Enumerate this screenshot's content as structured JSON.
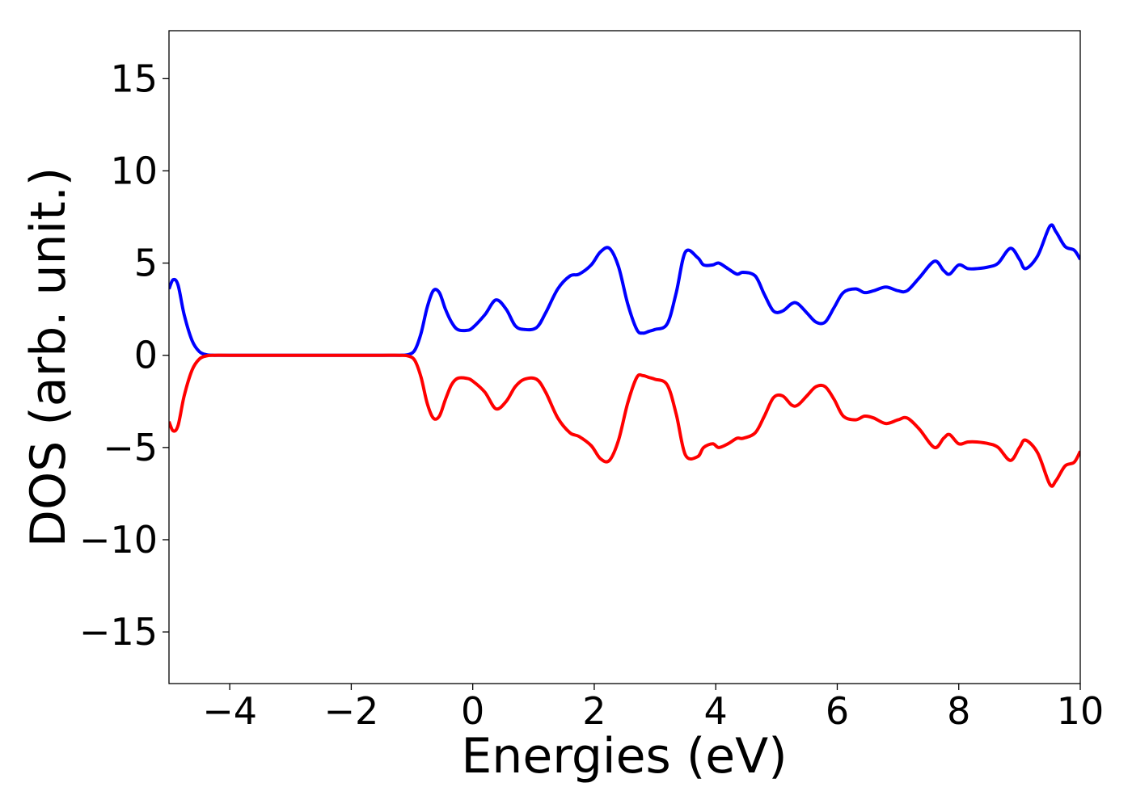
{
  "chart_data": {
    "type": "line",
    "title": "",
    "xlabel": "Energies (eV)",
    "ylabel": "DOS (arb. unit.)",
    "xlim": [
      -5,
      10
    ],
    "ylim": [
      -17.8,
      17.6
    ],
    "xticks": [
      -4,
      -2,
      0,
      2,
      4,
      6,
      8,
      10
    ],
    "yticks": [
      -15,
      -10,
      -5,
      0,
      5,
      10,
      15
    ],
    "xtick_labels": [
      "−4",
      "−2",
      "0",
      "2",
      "4",
      "6",
      "8",
      "10"
    ],
    "ytick_labels": [
      "−15",
      "−10",
      "−5",
      "0",
      "5",
      "10",
      "15"
    ],
    "grid": false,
    "legend": "none",
    "series": [
      {
        "color": "#0000ff",
        "x": [
          -5.0,
          -4.93,
          -4.85,
          -4.75,
          -4.62,
          -4.5,
          -4.38,
          -4.25,
          -4.0,
          -3.0,
          -2.0,
          -1.5,
          -1.2,
          -1.05,
          -0.95,
          -0.85,
          -0.75,
          -0.65,
          -0.55,
          -0.45,
          -0.35,
          -0.25,
          -0.1,
          0.0,
          0.2,
          0.38,
          0.55,
          0.7,
          0.85,
          1.05,
          1.2,
          1.4,
          1.6,
          1.75,
          1.95,
          2.1,
          2.25,
          2.4,
          2.55,
          2.7,
          2.8,
          2.9,
          3.0,
          3.2,
          3.35,
          3.5,
          3.7,
          3.8,
          3.95,
          4.05,
          4.2,
          4.35,
          4.45,
          4.65,
          4.8,
          4.95,
          5.1,
          5.25,
          5.35,
          5.5,
          5.65,
          5.8,
          5.95,
          6.1,
          6.3,
          6.45,
          6.6,
          6.8,
          7.0,
          7.15,
          7.35,
          7.6,
          7.75,
          7.85,
          8.0,
          8.15,
          8.3,
          8.5,
          8.65,
          8.85,
          9.0,
          9.1,
          9.3,
          9.5,
          9.6,
          9.75,
          9.9,
          10.0
        ],
        "values": [
          3.6,
          4.1,
          3.8,
          2.2,
          0.8,
          0.2,
          0.03,
          0.0,
          0.0,
          0.0,
          0.0,
          0.0,
          0.0,
          0.05,
          0.3,
          1.2,
          2.6,
          3.5,
          3.4,
          2.5,
          1.8,
          1.4,
          1.35,
          1.5,
          2.2,
          3.0,
          2.5,
          1.6,
          1.4,
          1.5,
          2.3,
          3.6,
          4.3,
          4.4,
          4.9,
          5.6,
          5.8,
          4.8,
          2.8,
          1.4,
          1.2,
          1.3,
          1.4,
          1.7,
          3.4,
          5.6,
          5.3,
          4.9,
          4.9,
          5.0,
          4.7,
          4.4,
          4.5,
          4.3,
          3.3,
          2.4,
          2.4,
          2.8,
          2.8,
          2.3,
          1.8,
          1.8,
          2.6,
          3.4,
          3.6,
          3.4,
          3.5,
          3.7,
          3.5,
          3.5,
          4.2,
          5.1,
          4.6,
          4.4,
          4.9,
          4.7,
          4.7,
          4.8,
          5.0,
          5.8,
          5.2,
          4.7,
          5.4,
          7.0,
          6.7,
          5.9,
          5.7,
          5.2
        ]
      },
      {
        "color": "#ff0000",
        "x": [
          -5.0,
          -4.93,
          -4.85,
          -4.75,
          -4.62,
          -4.5,
          -4.38,
          -4.25,
          -4.0,
          -3.0,
          -2.0,
          -1.5,
          -1.2,
          -1.05,
          -0.95,
          -0.85,
          -0.75,
          -0.65,
          -0.55,
          -0.45,
          -0.35,
          -0.25,
          -0.1,
          0.0,
          0.2,
          0.38,
          0.55,
          0.7,
          0.85,
          1.05,
          1.2,
          1.4,
          1.6,
          1.75,
          1.95,
          2.1,
          2.25,
          2.4,
          2.55,
          2.7,
          2.8,
          2.9,
          3.0,
          3.2,
          3.35,
          3.5,
          3.7,
          3.8,
          3.95,
          4.05,
          4.2,
          4.35,
          4.45,
          4.65,
          4.8,
          4.95,
          5.1,
          5.25,
          5.35,
          5.5,
          5.65,
          5.8,
          5.95,
          6.1,
          6.3,
          6.45,
          6.6,
          6.8,
          7.0,
          7.15,
          7.35,
          7.6,
          7.75,
          7.85,
          8.0,
          8.15,
          8.3,
          8.5,
          8.65,
          8.85,
          9.0,
          9.1,
          9.3,
          9.5,
          9.6,
          9.75,
          9.9,
          10.0
        ],
        "values": [
          -3.6,
          -4.1,
          -3.8,
          -2.2,
          -0.8,
          -0.2,
          -0.03,
          0.0,
          0.0,
          0.0,
          0.0,
          0.0,
          0.0,
          -0.05,
          -0.3,
          -1.2,
          -2.6,
          -3.4,
          -3.3,
          -2.4,
          -1.6,
          -1.25,
          -1.25,
          -1.4,
          -2.0,
          -2.9,
          -2.5,
          -1.7,
          -1.3,
          -1.3,
          -2.0,
          -3.4,
          -4.2,
          -4.4,
          -4.9,
          -5.6,
          -5.7,
          -4.6,
          -2.6,
          -1.2,
          -1.1,
          -1.2,
          -1.3,
          -1.6,
          -3.2,
          -5.4,
          -5.5,
          -5.0,
          -4.8,
          -5.0,
          -4.8,
          -4.5,
          -4.5,
          -4.2,
          -3.3,
          -2.3,
          -2.2,
          -2.7,
          -2.7,
          -2.2,
          -1.7,
          -1.7,
          -2.4,
          -3.3,
          -3.5,
          -3.3,
          -3.4,
          -3.7,
          -3.5,
          -3.4,
          -4.0,
          -5.0,
          -4.5,
          -4.3,
          -4.8,
          -4.7,
          -4.7,
          -4.8,
          -5.0,
          -5.7,
          -5.0,
          -4.6,
          -5.3,
          -7.0,
          -6.8,
          -6.0,
          -5.8,
          -5.2
        ]
      }
    ]
  }
}
